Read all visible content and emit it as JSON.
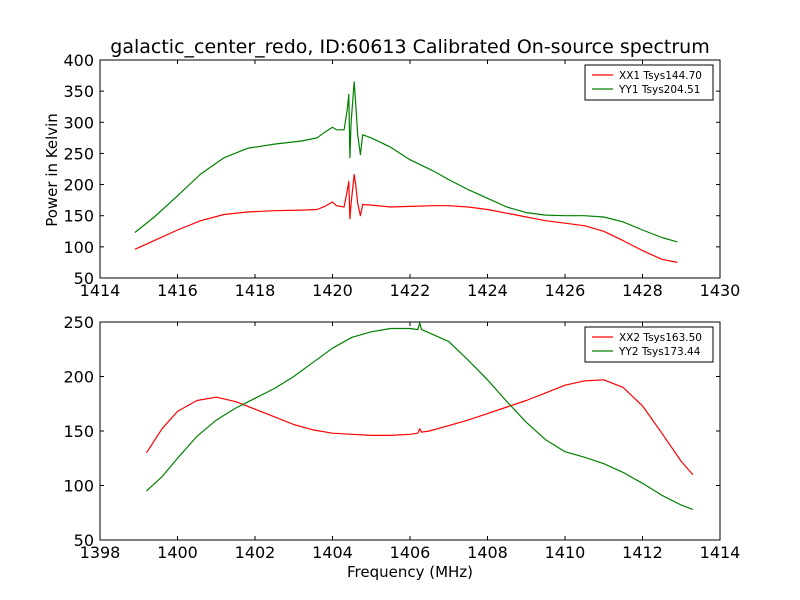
{
  "title": "galactic_center_redo, ID:60613 Calibrated On-source spectrum",
  "xlabel": "Frequency (MHz)",
  "ylabel": "Power in Kelvin",
  "chart_data": [
    {
      "type": "line",
      "xlim": [
        1414,
        1430
      ],
      "ylim": [
        50,
        400
      ],
      "xticks": [
        1414,
        1416,
        1418,
        1420,
        1422,
        1424,
        1426,
        1428,
        1430
      ],
      "yticks": [
        50,
        100,
        150,
        200,
        250,
        300,
        350,
        400
      ],
      "legend_position": "top-right",
      "series": [
        {
          "name": "XX1 Tsys144.70",
          "color": "#ff0000",
          "points": [
            [
              1414.9,
              96
            ],
            [
              1415.4,
              110
            ],
            [
              1416.0,
              127
            ],
            [
              1416.6,
              142
            ],
            [
              1417.2,
              152
            ],
            [
              1417.8,
              156
            ],
            [
              1418.5,
              158
            ],
            [
              1419.2,
              159
            ],
            [
              1419.6,
              160
            ],
            [
              1419.8,
              165
            ],
            [
              1420.0,
              172
            ],
            [
              1420.1,
              166
            ],
            [
              1420.3,
              164
            ],
            [
              1420.38,
              190
            ],
            [
              1420.42,
              205
            ],
            [
              1420.45,
              145
            ],
            [
              1420.48,
              170
            ],
            [
              1420.56,
              216
            ],
            [
              1420.6,
              200
            ],
            [
              1420.65,
              170
            ],
            [
              1420.72,
              150
            ],
            [
              1420.78,
              168
            ],
            [
              1421.0,
              167
            ],
            [
              1421.5,
              164
            ],
            [
              1422.0,
              165
            ],
            [
              1422.6,
              166
            ],
            [
              1423.0,
              166
            ],
            [
              1423.5,
              164
            ],
            [
              1424.0,
              160
            ],
            [
              1424.5,
              154
            ],
            [
              1425.0,
              148
            ],
            [
              1425.5,
              142
            ],
            [
              1426.0,
              138
            ],
            [
              1426.5,
              134
            ],
            [
              1427.0,
              125
            ],
            [
              1427.5,
              110
            ],
            [
              1428.0,
              94
            ],
            [
              1428.5,
              80
            ],
            [
              1428.9,
              75
            ]
          ]
        },
        {
          "name": "YY1 Tsys204.51",
          "color": "#008000",
          "points": [
            [
              1414.9,
              123
            ],
            [
              1415.4,
              148
            ],
            [
              1416.0,
              182
            ],
            [
              1416.6,
              217
            ],
            [
              1417.2,
              243
            ],
            [
              1417.8,
              258
            ],
            [
              1418.5,
              265
            ],
            [
              1419.2,
              270
            ],
            [
              1419.6,
              275
            ],
            [
              1419.8,
              284
            ],
            [
              1420.0,
              292
            ],
            [
              1420.1,
              288
            ],
            [
              1420.3,
              288
            ],
            [
              1420.38,
              320
            ],
            [
              1420.42,
              345
            ],
            [
              1420.45,
              243
            ],
            [
              1420.48,
              300
            ],
            [
              1420.56,
              365
            ],
            [
              1420.6,
              330
            ],
            [
              1420.65,
              280
            ],
            [
              1420.72,
              248
            ],
            [
              1420.78,
              280
            ],
            [
              1421.0,
              275
            ],
            [
              1421.5,
              260
            ],
            [
              1422.0,
              240
            ],
            [
              1422.6,
              222
            ],
            [
              1423.0,
              208
            ],
            [
              1423.5,
              192
            ],
            [
              1424.0,
              178
            ],
            [
              1424.5,
              164
            ],
            [
              1425.0,
              155
            ],
            [
              1425.5,
              151
            ],
            [
              1426.0,
              150
            ],
            [
              1426.5,
              150
            ],
            [
              1427.0,
              148
            ],
            [
              1427.5,
              140
            ],
            [
              1428.0,
              127
            ],
            [
              1428.5,
              115
            ],
            [
              1428.9,
              108
            ]
          ]
        }
      ]
    },
    {
      "type": "line",
      "xlim": [
        1398,
        1414
      ],
      "ylim": [
        50,
        250
      ],
      "xticks": [
        1398,
        1400,
        1402,
        1404,
        1406,
        1408,
        1410,
        1412,
        1414
      ],
      "yticks": [
        50,
        100,
        150,
        200,
        250
      ],
      "legend_position": "top-right",
      "series": [
        {
          "name": "XX2 Tsys163.50",
          "color": "#ff0000",
          "points": [
            [
              1399.2,
              130
            ],
            [
              1399.6,
              152
            ],
            [
              1400.0,
              168
            ],
            [
              1400.5,
              178
            ],
            [
              1401.0,
              181
            ],
            [
              1401.5,
              177
            ],
            [
              1402.0,
              170
            ],
            [
              1402.5,
              163
            ],
            [
              1403.0,
              156
            ],
            [
              1403.5,
              151
            ],
            [
              1404.0,
              148
            ],
            [
              1404.5,
              147
            ],
            [
              1405.0,
              146
            ],
            [
              1405.5,
              146
            ],
            [
              1406.0,
              147
            ],
            [
              1406.2,
              148
            ],
            [
              1406.25,
              152
            ],
            [
              1406.3,
              149
            ],
            [
              1406.5,
              150
            ],
            [
              1407.0,
              155
            ],
            [
              1407.5,
              160
            ],
            [
              1408.0,
              166
            ],
            [
              1408.5,
              172
            ],
            [
              1409.0,
              178
            ],
            [
              1409.5,
              185
            ],
            [
              1410.0,
              192
            ],
            [
              1410.5,
              196
            ],
            [
              1411.0,
              197
            ],
            [
              1411.5,
              190
            ],
            [
              1412.0,
              173
            ],
            [
              1412.5,
              148
            ],
            [
              1413.0,
              122
            ],
            [
              1413.3,
              110
            ]
          ]
        },
        {
          "name": "YY2 Tsys173.44",
          "color": "#008000",
          "points": [
            [
              1399.2,
              95
            ],
            [
              1399.6,
              108
            ],
            [
              1400.0,
              125
            ],
            [
              1400.5,
              145
            ],
            [
              1401.0,
              160
            ],
            [
              1401.5,
              171
            ],
            [
              1402.0,
              180
            ],
            [
              1402.5,
              189
            ],
            [
              1403.0,
              200
            ],
            [
              1403.5,
              213
            ],
            [
              1404.0,
              226
            ],
            [
              1404.5,
              236
            ],
            [
              1405.0,
              241
            ],
            [
              1405.5,
              244
            ],
            [
              1406.0,
              244
            ],
            [
              1406.2,
              243
            ],
            [
              1406.25,
              249
            ],
            [
              1406.3,
              243
            ],
            [
              1406.5,
              240
            ],
            [
              1407.0,
              232
            ],
            [
              1407.5,
              215
            ],
            [
              1408.0,
              197
            ],
            [
              1408.5,
              177
            ],
            [
              1409.0,
              158
            ],
            [
              1409.5,
              142
            ],
            [
              1410.0,
              131
            ],
            [
              1410.5,
              126
            ],
            [
              1411.0,
              120
            ],
            [
              1411.5,
              112
            ],
            [
              1412.0,
              102
            ],
            [
              1412.5,
              91
            ],
            [
              1413.0,
              82
            ],
            [
              1413.3,
              78
            ]
          ]
        }
      ]
    }
  ]
}
